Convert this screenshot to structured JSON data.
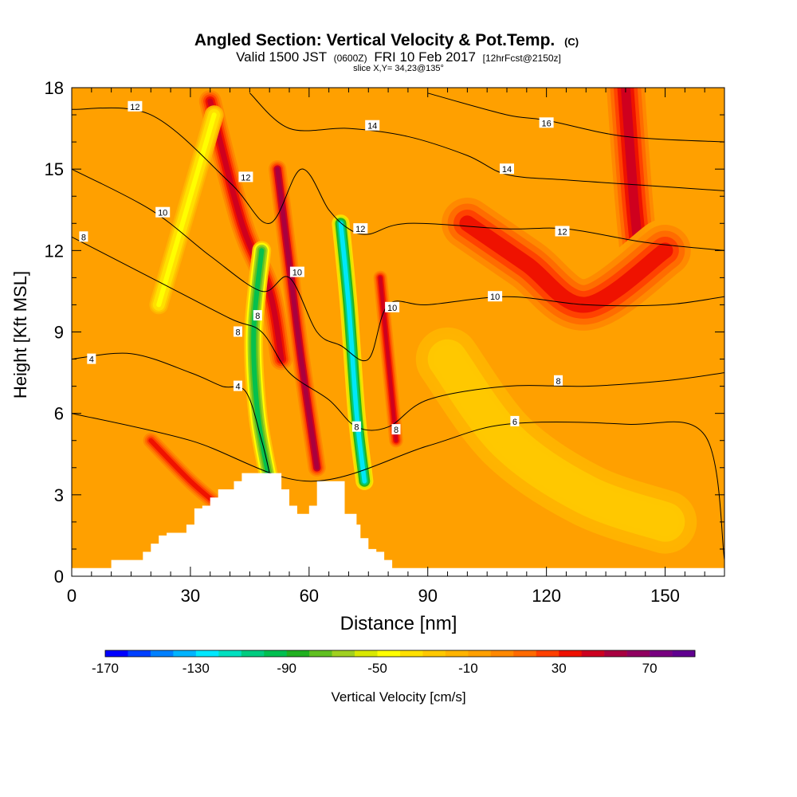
{
  "header": {
    "title": "Angled Section: Vertical Velocity & Pot.Temp.",
    "title_suffix": "(C)",
    "valid_main": "Valid 1500 JST",
    "valid_utc": "(0600Z)",
    "valid_date": "FRI 10 Feb 2017",
    "forecast": "[12hrFcst@2150z]",
    "slice": "slice X,Y= 34,23@135°"
  },
  "chart_data": {
    "type": "heatmap",
    "xlabel": "Distance [nm]",
    "ylabel": "Height [Kft MSL]",
    "xlim": [
      0,
      165
    ],
    "ylim": [
      0,
      18
    ],
    "x_ticks": [
      0,
      30,
      60,
      90,
      120,
      150
    ],
    "y_ticks": [
      0,
      3,
      6,
      9,
      12,
      15,
      18
    ],
    "grid": false,
    "colorbar": {
      "label": "Vertical Velocity [cm/s]",
      "placement": "bottom",
      "tick_labels": [
        "-170",
        "-130",
        "-90",
        "-50",
        "-10",
        "30",
        "70"
      ],
      "colors": [
        "#0000ff",
        "#0040ff",
        "#0080ff",
        "#00b4ff",
        "#00e8ff",
        "#00e0c0",
        "#00cc80",
        "#00c050",
        "#20b020",
        "#60c020",
        "#a0d020",
        "#d8e800",
        "#ffff00",
        "#ffe000",
        "#ffc800",
        "#ffb400",
        "#ffa000",
        "#ff8800",
        "#ff6a00",
        "#ff4000",
        "#ee1000",
        "#cc0020",
        "#a80040",
        "#900060",
        "#780080",
        "#600090"
      ]
    },
    "terrain": {
      "x": [
        0,
        10,
        10,
        18,
        18,
        20,
        20,
        22,
        22,
        24,
        24,
        29,
        29,
        31,
        31,
        33,
        33,
        35,
        35,
        37,
        37,
        41,
        41,
        43,
        43,
        45,
        45,
        48,
        48,
        51,
        51,
        53,
        53,
        55,
        55,
        57,
        57,
        60,
        60,
        62,
        62,
        65,
        65,
        69,
        69,
        72,
        72,
        73,
        73,
        75,
        75,
        77,
        77,
        79,
        79,
        81,
        81,
        84,
        84,
        90,
        90,
        165
      ],
      "height_kft": [
        0.3,
        0.3,
        0.6,
        0.6,
        0.9,
        0.9,
        1.2,
        1.2,
        1.5,
        1.5,
        1.6,
        1.6,
        1.9,
        1.9,
        2.5,
        2.5,
        2.6,
        2.6,
        2.9,
        2.9,
        3.2,
        3.2,
        3.5,
        3.5,
        3.8,
        3.8,
        3.8,
        3.8,
        3.8,
        3.8,
        3.8,
        3.8,
        3.2,
        3.2,
        2.6,
        2.6,
        2.3,
        2.3,
        2.6,
        2.6,
        3.5,
        3.5,
        3.5,
        3.5,
        2.3,
        2.3,
        1.9,
        1.9,
        1.4,
        1.4,
        1.0,
        1.0,
        0.9,
        0.9,
        0.6,
        0.6,
        0.3,
        0.3,
        0.3,
        0.3,
        0.3,
        0.3
      ]
    },
    "velocity_features": [
      {
        "kind": "updraft",
        "value": 45,
        "points": [
          [
            35,
            17.5
          ],
          [
            43,
            13
          ],
          [
            50,
            10.5
          ],
          [
            53,
            8
          ]
        ],
        "width": 3.5
      },
      {
        "kind": "updraft",
        "value": 55,
        "points": [
          [
            52,
            15
          ],
          [
            55,
            11.5
          ],
          [
            58,
            8
          ],
          [
            62,
            4
          ]
        ],
        "width": 2.8
      },
      {
        "kind": "updraft",
        "value": 40,
        "points": [
          [
            78,
            11
          ],
          [
            80,
            8
          ],
          [
            82,
            5
          ]
        ],
        "width": 2.2
      },
      {
        "kind": "updraft",
        "value": 45,
        "points": [
          [
            140,
            18
          ],
          [
            142,
            14
          ],
          [
            144,
            11
          ]
        ],
        "width": 6
      },
      {
        "kind": "updraft",
        "value": 30,
        "points": [
          [
            100,
            13
          ],
          [
            115,
            11.5
          ],
          [
            130,
            10
          ],
          [
            150,
            12
          ]
        ],
        "width": 10
      },
      {
        "kind": "updraft",
        "value": 35,
        "points": [
          [
            20,
            5
          ],
          [
            30,
            3.5
          ],
          [
            38,
            2.5
          ]
        ],
        "width": 3
      },
      {
        "kind": "downdraft",
        "value": -95,
        "points": [
          [
            48,
            12
          ],
          [
            46,
            9
          ],
          [
            47,
            6
          ],
          [
            50,
            3.5
          ]
        ],
        "width": 3
      },
      {
        "kind": "downdraft",
        "value": -130,
        "points": [
          [
            68,
            13
          ],
          [
            70,
            10
          ],
          [
            72,
            6
          ],
          [
            74,
            3.5
          ]
        ],
        "width": 2.8
      },
      {
        "kind": "downdraft",
        "value": -45,
        "points": [
          [
            36,
            17
          ],
          [
            28,
            13
          ],
          [
            22,
            10
          ]
        ],
        "width": 3
      },
      {
        "kind": "downdraft",
        "value": -30,
        "points": [
          [
            95,
            8
          ],
          [
            110,
            5
          ],
          [
            130,
            3
          ],
          [
            150,
            2
          ]
        ],
        "width": 10
      }
    ],
    "contours": [
      {
        "level": 4,
        "x": [
          0,
          15,
          30,
          38,
          44,
          48,
          50
        ],
        "y": [
          8.0,
          8.2,
          7.5,
          7.0,
          6.8,
          5.0,
          3.8
        ]
      },
      {
        "level": 6,
        "x": [
          0,
          30,
          60,
          90,
          110,
          140,
          160,
          165
        ],
        "y": [
          6.0,
          5.0,
          3.5,
          4.8,
          5.6,
          5.6,
          5.2,
          0.6
        ]
      },
      {
        "level": 8,
        "x": [
          0,
          20,
          40,
          48,
          55,
          65,
          72,
          80,
          90,
          110,
          130,
          150,
          165
        ],
        "y": [
          12.5,
          11.0,
          9.5,
          9.0,
          7.5,
          6.5,
          5.5,
          5.5,
          6.5,
          7.0,
          7.0,
          7.2,
          7.5
        ]
      },
      {
        "level": 10,
        "x": [
          0,
          20,
          35,
          48,
          55,
          62,
          68,
          75,
          80,
          90,
          110,
          130,
          150,
          165
        ],
        "y": [
          15.0,
          13.5,
          11.8,
          10.5,
          11.0,
          9.0,
          8.5,
          8.0,
          10.0,
          10.0,
          10.3,
          10.0,
          10.0,
          10.3
        ]
      },
      {
        "level": 12,
        "x": [
          0,
          20,
          40,
          50,
          58,
          65,
          70,
          75,
          85,
          110,
          125,
          145,
          165
        ],
        "y": [
          17.2,
          17.0,
          14.5,
          13.0,
          15.0,
          13.5,
          12.8,
          12.6,
          13.0,
          12.8,
          12.8,
          12.3,
          12.0
        ]
      },
      {
        "level": 14,
        "x": [
          45,
          55,
          70,
          85,
          100,
          110,
          125,
          145,
          165
        ],
        "y": [
          17.8,
          16.5,
          16.5,
          16.2,
          15.5,
          14.8,
          14.6,
          14.4,
          14.2
        ]
      },
      {
        "level": 16,
        "x": [
          90,
          110,
          120,
          140,
          165
        ],
        "y": [
          17.8,
          17.0,
          16.8,
          16.2,
          16.0
        ]
      }
    ],
    "contour_labels": [
      {
        "text": "12",
        "x": 16,
        "y": 17.3
      },
      {
        "text": "14",
        "x": 76,
        "y": 16.6
      },
      {
        "text": "16",
        "x": 120,
        "y": 16.7
      },
      {
        "text": "12",
        "x": 44,
        "y": 14.7
      },
      {
        "text": "14",
        "x": 110,
        "y": 15.0
      },
      {
        "text": "10",
        "x": 23,
        "y": 13.4
      },
      {
        "text": "12",
        "x": 73,
        "y": 12.8
      },
      {
        "text": "12",
        "x": 124,
        "y": 12.7
      },
      {
        "text": "8",
        "x": 3,
        "y": 12.5
      },
      {
        "text": "10",
        "x": 57,
        "y": 11.2
      },
      {
        "text": "10",
        "x": 107,
        "y": 10.3
      },
      {
        "text": "10",
        "x": 81,
        "y": 9.9
      },
      {
        "text": "8",
        "x": 47,
        "y": 9.6
      },
      {
        "text": "8",
        "x": 42,
        "y": 9.0
      },
      {
        "text": "4",
        "x": 5,
        "y": 8.0
      },
      {
        "text": "8",
        "x": 123,
        "y": 7.2
      },
      {
        "text": "4",
        "x": 42,
        "y": 7.0
      },
      {
        "text": "6",
        "x": 112,
        "y": 5.7
      },
      {
        "text": "8",
        "x": 72,
        "y": 5.5
      },
      {
        "text": "8",
        "x": 82,
        "y": 5.4
      }
    ]
  }
}
